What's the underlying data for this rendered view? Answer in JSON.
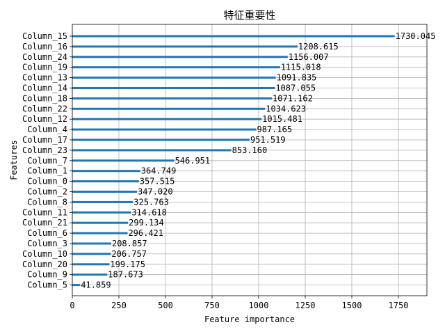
{
  "chart_data": {
    "type": "bar",
    "orientation": "horizontal",
    "title": "特征重要性",
    "xlabel": "Feature importance",
    "ylabel": "Features",
    "xlim": [
      0,
      1903.05
    ],
    "xticks": [
      0,
      250,
      500,
      750,
      1000,
      1250,
      1500,
      1750
    ],
    "grid": true,
    "bar_color": "#1f77b4",
    "categories": [
      "Column_15",
      "Column_16",
      "Column_24",
      "Column_19",
      "Column_13",
      "Column_14",
      "Column_18",
      "Column_22",
      "Column_12",
      "Column_4",
      "Column_17",
      "Column_23",
      "Column_7",
      "Column_1",
      "Column_0",
      "Column_2",
      "Column_8",
      "Column_11",
      "Column_21",
      "Column_6",
      "Column_3",
      "Column_10",
      "Column_20",
      "Column_9",
      "Column_5"
    ],
    "values": [
      1730.045,
      1208.615,
      1156.007,
      1115.018,
      1091.835,
      1087.055,
      1071.162,
      1034.623,
      1015.481,
      987.165,
      951.519,
      853.16,
      546.951,
      364.749,
      357.515,
      347.02,
      325.763,
      314.618,
      299.134,
      296.421,
      208.857,
      206.757,
      199.175,
      187.673,
      41.859
    ],
    "value_labels": [
      "1730.045",
      "1208.615",
      "1156.007",
      "1115.018",
      "1091.835",
      "1087.055",
      "1071.162",
      "1034.623",
      "1015.481",
      "987.165",
      "951.519",
      "853.160",
      "546.951",
      "364.749",
      "357.515",
      "347.020",
      "325.763",
      "314.618",
      "299.134",
      "296.421",
      "208.857",
      "206.757",
      "199.175",
      "187.673",
      "41.859"
    ]
  }
}
